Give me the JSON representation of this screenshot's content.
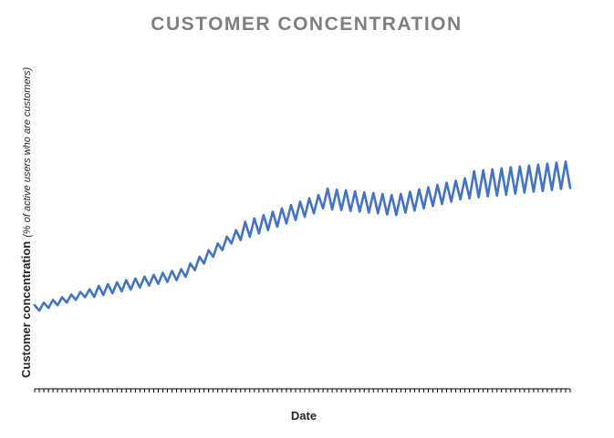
{
  "chart_data": {
    "type": "line",
    "title": "CUSTOMER CONCENTRATION",
    "x_label": "Date",
    "y_label": "Customer concentration",
    "y_label_note": "(% of active users who are customers)",
    "categories": [
      null,
      null,
      null,
      null,
      null,
      null,
      null,
      null,
      null,
      null,
      null,
      null,
      null,
      null,
      null,
      null,
      null,
      null,
      null,
      null,
      null,
      null,
      null,
      null,
      null,
      null,
      null,
      null,
      null,
      null,
      null,
      null,
      null,
      null,
      null,
      null,
      null,
      null,
      null,
      null,
      null,
      null,
      null,
      null,
      null,
      null,
      null,
      null,
      null,
      null,
      null,
      null,
      null,
      null,
      null,
      null,
      null,
      null,
      null,
      null,
      null,
      null,
      null,
      null,
      null,
      null,
      null,
      null,
      null,
      null,
      null,
      null,
      null,
      null,
      null,
      null,
      null,
      null,
      null,
      null,
      null,
      null,
      null,
      null,
      null,
      null,
      null,
      null,
      null,
      null,
      null,
      null,
      null,
      null,
      null,
      null,
      null,
      null,
      null,
      null,
      null,
      null,
      null,
      null,
      null,
      null,
      null,
      null,
      null,
      null,
      null,
      null,
      null,
      null,
      null,
      null,
      null,
      null
    ],
    "series": [
      {
        "color": "#4472c4",
        "values": [
          25,
          23.4,
          25.8,
          24.2,
          26.6,
          25,
          27.4,
          25.8,
          28.2,
          26.6,
          29,
          27.4,
          29.8,
          27.5,
          30.8,
          28.1,
          31.3,
          28.6,
          31.9,
          29.2,
          32.5,
          29.7,
          33,
          30.3,
          33.6,
          30.9,
          34.1,
          31.4,
          34.7,
          32,
          35.3,
          32.5,
          35.8,
          33.5,
          37.5,
          35.5,
          39.5,
          37.5,
          41.5,
          39.5,
          43.5,
          41.5,
          45.5,
          43.5,
          47.5,
          44.5,
          50,
          45.5,
          51,
          46.5,
          52,
          47.5,
          53,
          48.5,
          54,
          49.5,
          55,
          50.5,
          56,
          51.5,
          57,
          52.5,
          58,
          54,
          59.9,
          53.7,
          59.6,
          53.5,
          59.4,
          53.2,
          59.1,
          53,
          58.8,
          52.7,
          58.6,
          52.5,
          58.3,
          52.2,
          58,
          52,
          58.3,
          52.7,
          59,
          53.3,
          59.7,
          54,
          60.3,
          54.7,
          61,
          55.3,
          61.7,
          56,
          62.3,
          56.7,
          63,
          57,
          65.1,
          57.3,
          65.4,
          57.6,
          65.7,
          57.8,
          66,
          58.1,
          66.3,
          58.4,
          66.5,
          58.7,
          66.8,
          59,
          67.1,
          59.2,
          67.4,
          59.5,
          67.7,
          59.8,
          68,
          60.1
        ]
      }
    ],
    "ylim": [
      0,
      100
    ]
  }
}
